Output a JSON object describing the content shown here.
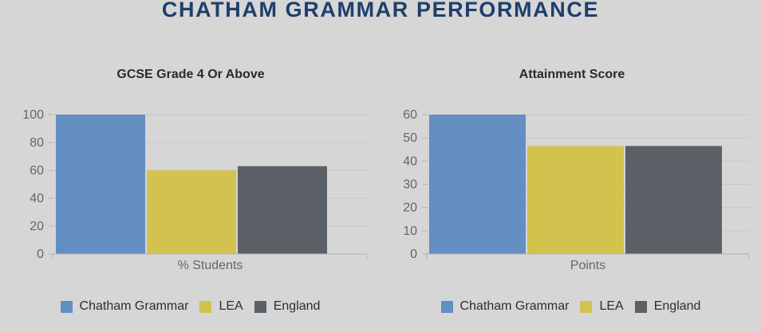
{
  "page": {
    "title": "CHATHAM GRAMMAR PERFORMANCE"
  },
  "colors": {
    "background": "#d6d6d6",
    "title": "#1d3f6c",
    "grid": "#c6c6c6",
    "axis": "#b3b3b3",
    "series": [
      "#638ec2",
      "#d4c24e",
      "#5b6166"
    ]
  },
  "chart_data": [
    {
      "type": "bar",
      "title": "GCSE Grade 4 Or Above",
      "categories": [
        "% Students"
      ],
      "series": [
        {
          "name": "Chatham Grammar",
          "values": [
            100
          ]
        },
        {
          "name": "LEA",
          "values": [
            60
          ]
        },
        {
          "name": "England",
          "values": [
            63
          ]
        }
      ],
      "xlabel": "",
      "ylabel": "",
      "ylim": [
        0,
        100
      ],
      "yticks": [
        0,
        20,
        40,
        60,
        80,
        100
      ],
      "grid": true,
      "legend": "bottom"
    },
    {
      "type": "bar",
      "title": "Attainment Score",
      "categories": [
        "Points"
      ],
      "series": [
        {
          "name": "Chatham Grammar",
          "values": [
            60
          ]
        },
        {
          "name": "LEA",
          "values": [
            46.5
          ]
        },
        {
          "name": "England",
          "values": [
            46.5
          ]
        }
      ],
      "xlabel": "",
      "ylabel": "",
      "ylim": [
        0,
        60
      ],
      "yticks": [
        0,
        10,
        20,
        30,
        40,
        50,
        60
      ],
      "grid": true,
      "legend": "bottom"
    }
  ]
}
